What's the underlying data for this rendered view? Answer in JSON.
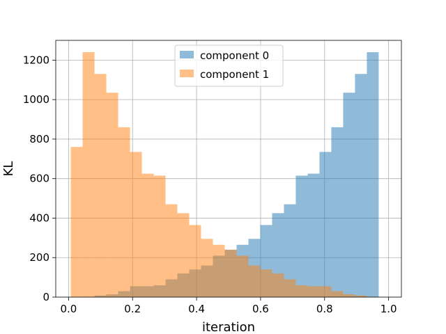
{
  "chart_data": {
    "type": "bar",
    "xlabel": "iteration",
    "ylabel": "KL",
    "xlim": [
      -0.04,
      1.04
    ],
    "ylim": [
      0,
      1300
    ],
    "xticks": [
      0.0,
      0.2,
      0.4,
      0.6,
      0.8,
      1.0
    ],
    "xtick_labels": [
      "0.0",
      "0.2",
      "0.4",
      "0.6",
      "0.8",
      "1.0"
    ],
    "yticks": [
      0,
      200,
      400,
      600,
      800,
      1000,
      1200
    ],
    "ytick_labels": [
      "0",
      "200",
      "400",
      "600",
      "800",
      "1000",
      "1200"
    ],
    "grid": true,
    "legend": "upper-center",
    "bin_edges": [
      0.007,
      0.044,
      0.081,
      0.118,
      0.155,
      0.192,
      0.229,
      0.266,
      0.303,
      0.34,
      0.377,
      0.414,
      0.451,
      0.488,
      0.525,
      0.562,
      0.599,
      0.636,
      0.673,
      0.71,
      0.747,
      0.784,
      0.821,
      0.858,
      0.895,
      0.932,
      0.969
    ],
    "series": [
      {
        "name": "component 0",
        "color": "#1f77b4",
        "values": [
          0,
          2,
          8,
          14,
          30,
          55,
          55,
          60,
          90,
          120,
          140,
          160,
          210,
          240,
          265,
          295,
          365,
          425,
          470,
          615,
          625,
          735,
          860,
          1035,
          1130,
          1240
        ]
      },
      {
        "name": "component 1",
        "color": "#ff7f0e",
        "values": [
          760,
          1240,
          1130,
          1035,
          860,
          735,
          625,
          615,
          470,
          425,
          365,
          295,
          265,
          240,
          210,
          160,
          140,
          120,
          90,
          60,
          55,
          55,
          30,
          14,
          8,
          2
        ]
      }
    ]
  }
}
